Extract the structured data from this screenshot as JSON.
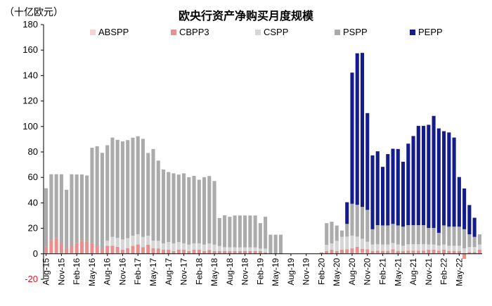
{
  "chart_data": {
    "type": "bar",
    "stacked": true,
    "title": "欧央行资产净购买月度规模",
    "unit_label": "（十亿欧元）",
    "ylim": [
      -20,
      180
    ],
    "yticks": [
      180,
      160,
      140,
      120,
      100,
      80,
      60,
      40,
      20,
      0,
      -20
    ],
    "xtick_labels": [
      "Aug-15",
      "Nov-15",
      "Feb-16",
      "May-16",
      "Aug-16",
      "Nov-16",
      "Feb-17",
      "May-17",
      "Aug-17",
      "Nov-17",
      "Feb-18",
      "May-18",
      "Aug-18",
      "Nov-18",
      "Feb-19",
      "May-19",
      "Aug-19",
      "Nov-19",
      "Feb-20",
      "May-20",
      "Aug-20",
      "Nov-20",
      "Feb-21",
      "May-21",
      "Aug-21",
      "Nov-21",
      "Feb-22",
      "May-22"
    ],
    "legend_position": "top",
    "series": [
      {
        "name": "ABSPP",
        "color": "#f6d3d3",
        "values": [
          0.5,
          0.5,
          0.5,
          0.5,
          0.3,
          0.5,
          0.3,
          0.3,
          0.5,
          0.3,
          0.5,
          0.3,
          0.3,
          0.3,
          0.5,
          0.3,
          0.3,
          0.2,
          0.3,
          0.3,
          0.2,
          0.3,
          0.2,
          0.2,
          0.2,
          0.2,
          0.2,
          0.2,
          0.2,
          0.2,
          0.2,
          0.2,
          0.1,
          0.2,
          0.1,
          0.2,
          0.1,
          0.1,
          0.1,
          0.1,
          0.1,
          0.1,
          0.1,
          0.1,
          0.0,
          0.0,
          0.0,
          0.0,
          0.0,
          0.0,
          0.0,
          0.0,
          0.0,
          0.0,
          0.1,
          0.1,
          0.2,
          0.2,
          0.3,
          0.5,
          0.3,
          0.5,
          0.8,
          0.5,
          0.3,
          0.5,
          0.3,
          0.3,
          0.5,
          0.3,
          0.3,
          0.5,
          0.5,
          0.5,
          0.5,
          0.3,
          0.3,
          0.5,
          0.3,
          0.3,
          0.3,
          0.3,
          0.3,
          0.3,
          0.3,
          0.3
        ]
      },
      {
        "name": "CBPP3",
        "color": "#e8908f",
        "values": [
          5,
          10,
          12,
          8,
          4,
          6,
          8,
          10,
          9,
          8,
          6,
          4,
          6,
          6,
          5,
          3,
          4,
          6,
          7,
          5,
          7,
          4,
          4,
          3,
          3,
          2,
          3,
          3,
          2,
          3,
          3,
          2,
          3,
          2,
          2,
          2,
          2,
          2,
          2,
          2,
          2,
          2,
          2,
          1,
          0,
          0,
          0,
          0,
          0,
          0,
          0,
          0,
          0,
          0,
          1,
          2,
          3,
          2,
          3,
          3,
          4,
          5,
          3,
          3,
          2,
          2,
          2,
          2,
          3,
          2,
          2,
          2,
          2,
          2,
          2,
          3,
          3,
          2,
          3,
          2,
          2,
          2,
          -4,
          1,
          1,
          3
        ]
      },
      {
        "name": "CSPP",
        "color": "#d6d6d6",
        "values": [
          0,
          0,
          0,
          0,
          0,
          0,
          0,
          0,
          0,
          0,
          0,
          0,
          4,
          7,
          7,
          8,
          8,
          8,
          8,
          8,
          7,
          6,
          6,
          5,
          6,
          6,
          6,
          5,
          5,
          5,
          5,
          5,
          5,
          5,
          4,
          3,
          3,
          3,
          3,
          3,
          3,
          3,
          2,
          3,
          0,
          0,
          0,
          0,
          0,
          0,
          0,
          0,
          0,
          0,
          0,
          5,
          5,
          8,
          10,
          10,
          10,
          8,
          8,
          6,
          5,
          5,
          5,
          5,
          5,
          5,
          4,
          5,
          5,
          5,
          5,
          4,
          4,
          4,
          4,
          4,
          4,
          4,
          4,
          4,
          4,
          4
        ]
      },
      {
        "name": "PSPP",
        "color": "#ababab",
        "values": [
          46,
          52,
          50,
          54,
          46,
          56,
          54,
          52,
          52,
          75,
          78,
          75,
          75,
          78,
          77,
          77,
          77,
          77,
          77,
          77,
          65,
          72,
          63,
          58,
          55,
          55,
          53,
          55,
          53,
          53,
          50,
          53,
          53,
          50,
          22,
          25,
          24,
          25,
          25,
          25,
          25,
          25,
          20,
          25,
          15,
          15,
          15,
          0,
          0,
          0,
          0,
          0,
          0,
          0,
          0,
          17,
          17,
          12,
          5,
          10,
          25,
          25,
          25,
          25,
          12,
          15,
          15,
          15,
          15,
          15,
          15,
          15,
          15,
          15,
          15,
          13,
          13,
          10,
          15,
          15,
          15,
          15,
          15,
          10,
          8,
          8
        ]
      },
      {
        "name": "PEPP",
        "color": "#141b8c",
        "values": [
          0,
          0,
          0,
          0,
          0,
          0,
          0,
          0,
          0,
          0,
          0,
          0,
          0,
          0,
          0,
          0,
          0,
          0,
          0,
          0,
          0,
          0,
          0,
          0,
          0,
          0,
          0,
          0,
          0,
          0,
          0,
          0,
          0,
          0,
          0,
          0,
          0,
          0,
          0,
          0,
          0,
          0,
          0,
          0,
          0,
          0,
          0,
          0,
          0,
          0,
          0,
          0,
          0,
          0,
          0,
          0,
          0,
          0,
          0,
          17,
          103,
          119,
          121,
          76,
          58,
          58,
          46,
          56,
          59,
          60,
          51,
          64,
          70,
          78,
          78,
          81,
          88,
          82,
          74,
          74,
          70,
          39,
          32,
          23,
          15,
          0
        ]
      }
    ]
  }
}
